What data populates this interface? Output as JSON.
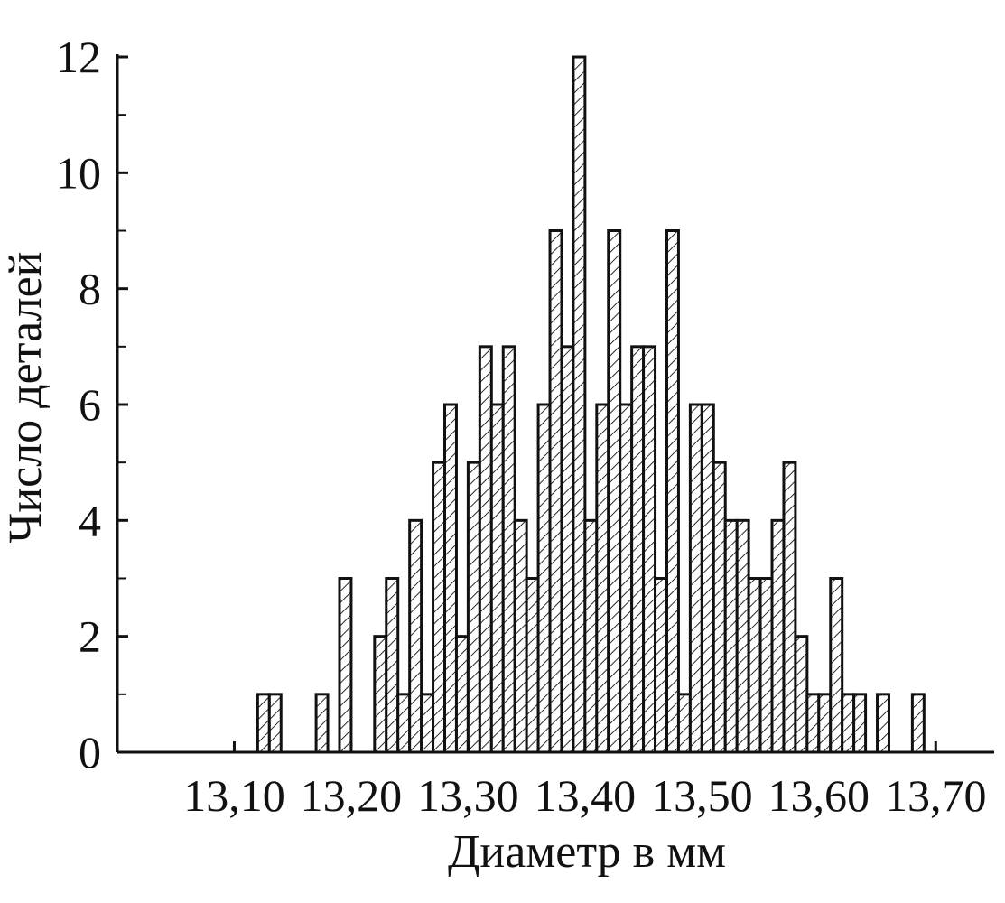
{
  "chart_data": {
    "type": "histogram",
    "xlabel": "Диаметр в мм",
    "ylabel": "Число деталей",
    "bins": [
      13.12,
      13.13,
      13.14,
      13.15,
      13.16,
      13.17,
      13.18,
      13.19,
      13.2,
      13.21,
      13.22,
      13.23,
      13.24,
      13.25,
      13.26,
      13.27,
      13.28,
      13.29,
      13.3,
      13.31,
      13.32,
      13.33,
      13.34,
      13.35,
      13.36,
      13.37,
      13.38,
      13.39,
      13.4,
      13.41,
      13.42,
      13.43,
      13.44,
      13.45,
      13.46,
      13.47,
      13.48,
      13.49,
      13.5,
      13.51,
      13.52,
      13.53,
      13.54,
      13.55,
      13.56,
      13.57,
      13.58,
      13.59,
      13.6,
      13.61,
      13.62,
      13.63,
      13.64,
      13.65,
      13.66,
      13.67,
      13.68,
      13.69
    ],
    "values": [
      1,
      1,
      0,
      0,
      0,
      1,
      0,
      3,
      0,
      0,
      2,
      3,
      1,
      4,
      1,
      5,
      6,
      2,
      5,
      7,
      6,
      7,
      4,
      3,
      6,
      9,
      7,
      12,
      4,
      6,
      9,
      6,
      7,
      7,
      3,
      9,
      1,
      6,
      6,
      5,
      4,
      4,
      3,
      3,
      4,
      5,
      2,
      1,
      1,
      3,
      1,
      1,
      0,
      1,
      0,
      0,
      1
    ],
    "xlim": [
      13.0,
      13.75
    ],
    "xticks": [
      {
        "value": 13.1,
        "label": "13,10"
      },
      {
        "value": 13.2,
        "label": "13,20"
      },
      {
        "value": 13.3,
        "label": "13,30"
      },
      {
        "value": 13.4,
        "label": "13,40"
      },
      {
        "value": 13.5,
        "label": "13,50"
      },
      {
        "value": 13.6,
        "label": "13,60"
      },
      {
        "value": 13.7,
        "label": "13,70"
      }
    ],
    "ylim": [
      0,
      12
    ],
    "yticks": [
      0,
      2,
      4,
      6,
      8,
      10,
      12
    ],
    "y_minor_ticks": [
      1,
      3,
      5,
      7,
      9,
      11
    ],
    "color": "#111111",
    "hatch": true
  }
}
